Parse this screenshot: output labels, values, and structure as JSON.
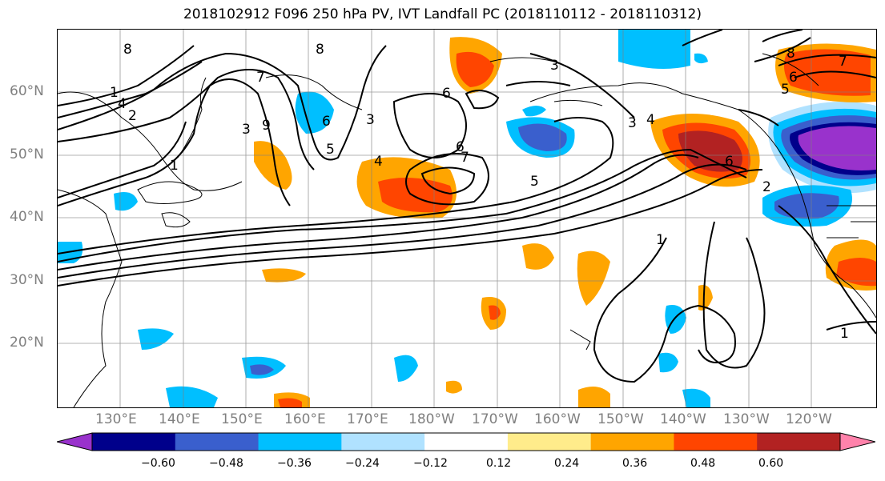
{
  "title": "2018102912 F096 250 hPa PV, IVT Landfall PC (2018110112 - 2018110312)",
  "lat_labels": [
    "60°N",
    "50°N",
    "40°N",
    "30°N",
    "20°N"
  ],
  "lon_labels": [
    "130°E",
    "140°E",
    "150°E",
    "160°E",
    "170°E",
    "180°W",
    "170°W",
    "160°W",
    "150°W",
    "140°W",
    "130°W",
    "120°W"
  ],
  "contour_labels": [
    "8",
    "8",
    "7",
    "1",
    "4",
    "2",
    "3",
    "9",
    "6",
    "5",
    "6",
    "3",
    "6",
    "4",
    "5",
    "3",
    "3",
    "4",
    "6",
    "7",
    "1",
    "2",
    "8",
    "7",
    "6",
    "5",
    "1",
    "1"
  ],
  "colorbar": {
    "tick_labels": [
      "−0.60",
      "−0.48",
      "−0.36",
      "−0.24",
      "−0.12",
      "0.12",
      "0.24",
      "0.36",
      "0.48",
      "0.60"
    ],
    "colors": [
      "#9932CC",
      "#00008B",
      "#3A5FCD",
      "#00BFFF",
      "#B0E2FF",
      "#FFFFFF",
      "#FFEC8B",
      "#FFA500",
      "#FF4500",
      "#B22222",
      "#FF82AB"
    ]
  }
}
